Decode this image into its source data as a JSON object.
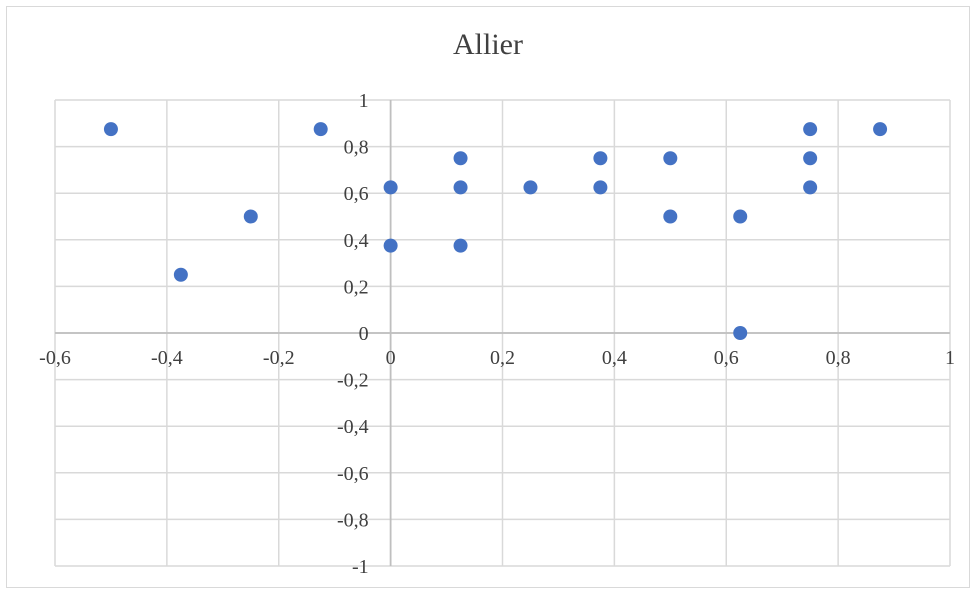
{
  "chart_data": {
    "type": "scatter",
    "title": "Allier",
    "xlabel": "",
    "ylabel": "",
    "xlim": [
      -0.6,
      1
    ],
    "ylim": [
      -1,
      1
    ],
    "x_ticks": [
      -0.6,
      -0.4,
      -0.2,
      0,
      0.2,
      0.4,
      0.6,
      0.8,
      1
    ],
    "y_ticks": [
      -1,
      -0.8,
      -0.6,
      -0.4,
      -0.2,
      0,
      0.2,
      0.4,
      0.6,
      0.8,
      1
    ],
    "x_tick_labels": [
      "-0,6",
      "-0,4",
      "-0,2",
      "0",
      "0,2",
      "0,4",
      "0,6",
      "0,8",
      "1"
    ],
    "y_tick_labels": [
      "-1",
      "-0,8",
      "-0,6",
      "-0,4",
      "-0,2",
      "0",
      "0,2",
      "0,4",
      "0,6",
      "0,8",
      "1"
    ],
    "grid": true,
    "legend": "none",
    "marker_color": "#4472c4",
    "gridline_color": "#d9d9d9",
    "axis_color": "#bfbfbf",
    "series": [
      {
        "points": [
          {
            "x": -0.5,
            "y": 0.875
          },
          {
            "x": -0.375,
            "y": 0.25
          },
          {
            "x": -0.25,
            "y": 0.5
          },
          {
            "x": -0.125,
            "y": 0.875
          },
          {
            "x": 0,
            "y": 0.625
          },
          {
            "x": 0,
            "y": 0.375
          },
          {
            "x": 0.125,
            "y": 0.75
          },
          {
            "x": 0.125,
            "y": 0.625
          },
          {
            "x": 0.125,
            "y": 0.375
          },
          {
            "x": 0.25,
            "y": 0.625
          },
          {
            "x": 0.375,
            "y": 0.75
          },
          {
            "x": 0.375,
            "y": 0.625
          },
          {
            "x": 0.5,
            "y": 0.75
          },
          {
            "x": 0.5,
            "y": 0.5
          },
          {
            "x": 0.625,
            "y": 0.5
          },
          {
            "x": 0.625,
            "y": 0
          },
          {
            "x": 0.75,
            "y": 0.875
          },
          {
            "x": 0.75,
            "y": 0.75
          },
          {
            "x": 0.75,
            "y": 0.625
          },
          {
            "x": 0.875,
            "y": 0.875
          }
        ]
      }
    ]
  }
}
